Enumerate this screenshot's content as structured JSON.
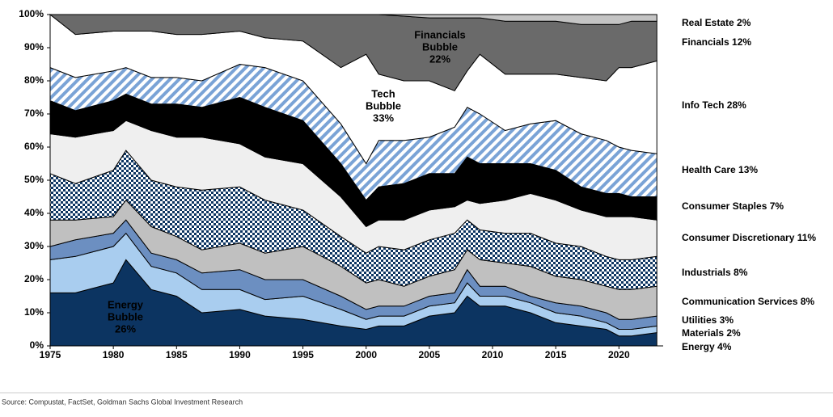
{
  "chart_data": {
    "type": "stacked_area",
    "x": [
      1975,
      1977,
      1980,
      1981,
      1983,
      1985,
      1987,
      1990,
      1992,
      1995,
      1998,
      2000,
      2001,
      2003,
      2005,
      2007,
      2008,
      2009,
      2011,
      2013,
      2015,
      2017,
      2019,
      2020,
      2021,
      2023
    ],
    "xlim": [
      1975,
      2023.5
    ],
    "xticks": [
      1975,
      1980,
      1985,
      1990,
      1995,
      2000,
      2005,
      2010,
      2015,
      2020
    ],
    "ylim": [
      0,
      100
    ],
    "yticks": [
      {
        "value": 0,
        "label": "0%"
      },
      {
        "value": 10,
        "label": "10%"
      },
      {
        "value": 20,
        "label": "20%"
      },
      {
        "value": 30,
        "label": "30%"
      },
      {
        "value": 40,
        "label": "40%"
      },
      {
        "value": 50,
        "label": "50%"
      },
      {
        "value": 60,
        "label": "60%"
      },
      {
        "value": 70,
        "label": "70%"
      },
      {
        "value": 80,
        "label": "80%"
      },
      {
        "value": 90,
        "label": "90%"
      },
      {
        "value": 100,
        "label": "100%"
      }
    ],
    "series": [
      {
        "name": "Energy 4%",
        "color": "#0c3461",
        "values": [
          16,
          16,
          19,
          26,
          17,
          15,
          10,
          11,
          9,
          8,
          6,
          5,
          6,
          6,
          9,
          10,
          15,
          12,
          12,
          10,
          7,
          6,
          5,
          3,
          3,
          4
        ]
      },
      {
        "name": "Materials 2%",
        "color": "#a9cdef",
        "values": [
          10,
          11,
          11,
          8,
          7,
          7,
          7,
          6,
          5,
          7,
          5,
          3,
          3,
          3,
          3,
          3,
          4,
          3,
          3,
          3,
          3,
          3,
          2,
          2,
          2,
          2
        ]
      },
      {
        "name": "Utilities 3%",
        "color": "#6c8fc1",
        "values": [
          4,
          5,
          4,
          4,
          4,
          4,
          5,
          6,
          6,
          5,
          4,
          3,
          3,
          3,
          3,
          3,
          4,
          3,
          3,
          2,
          3,
          3,
          3,
          3,
          3,
          3
        ]
      },
      {
        "name": "Communication Services 8%",
        "color": "#c0c0c0",
        "values": [
          8,
          6,
          5,
          6,
          8,
          7,
          7,
          8,
          8,
          10,
          9,
          8,
          8,
          6,
          6,
          7,
          6,
          8,
          7,
          9,
          8,
          8,
          8,
          9,
          9,
          9
        ]
      },
      {
        "name": "Industrials 8%",
        "color": "#0c3461",
        "pattern": "checker",
        "values": [
          14,
          11,
          14,
          15,
          14,
          15,
          18,
          17,
          16,
          11,
          9,
          9,
          10,
          11,
          11,
          11,
          9,
          9,
          9,
          10,
          10,
          10,
          9,
          9,
          9,
          9
        ]
      },
      {
        "name": "Consumer Discretionary 11%",
        "color": "#efefef",
        "values": [
          12,
          14,
          12,
          9,
          15,
          15,
          16,
          13,
          13,
          14,
          12,
          8,
          8,
          9,
          9,
          8,
          6,
          8,
          10,
          12,
          13,
          11,
          12,
          13,
          13,
          11
        ]
      },
      {
        "name": "Consumer Staples 7%",
        "color": "#000000",
        "values": [
          10,
          8,
          9,
          8,
          8,
          10,
          9,
          14,
          15,
          13,
          10,
          8,
          10,
          11,
          11,
          10,
          13,
          12,
          11,
          9,
          9,
          7,
          7,
          7,
          6,
          7
        ]
      },
      {
        "name": "Health Care 13%",
        "color": "#7aa3d6",
        "pattern": "stripes",
        "values": [
          10,
          10,
          9,
          8,
          8,
          8,
          8,
          10,
          12,
          12,
          12,
          11,
          14,
          13,
          11,
          14,
          15,
          15,
          10,
          12,
          15,
          16,
          16,
          14,
          14,
          13
        ]
      },
      {
        "name": "Info Tech 28%",
        "color": "#ffffff",
        "values": [
          16,
          13,
          12,
          11,
          14,
          13,
          14,
          10,
          9,
          12,
          17,
          33,
          20,
          18,
          17,
          11,
          11,
          18,
          17,
          15,
          14,
          17,
          18,
          24,
          25,
          28
        ]
      },
      {
        "name": "Financials 12%",
        "color": "#6a6a6a",
        "values": [
          0,
          6,
          5,
          5,
          5,
          6,
          6,
          5,
          7,
          8,
          16,
          12,
          18,
          19.5,
          19,
          22,
          16,
          11,
          16,
          16,
          16,
          16,
          17,
          13,
          14,
          12
        ]
      },
      {
        "name": "Real Estate 2%",
        "color": "#c4c4c4",
        "values": [
          0,
          0,
          0,
          0,
          0,
          0,
          0,
          0,
          0,
          0,
          0,
          0,
          0,
          0.5,
          1,
          1,
          1,
          1,
          2,
          2,
          2,
          3,
          3,
          3,
          2,
          2
        ]
      }
    ],
    "annotations": [
      {
        "lines": [
          "Energy",
          "Bubble",
          "26%"
        ]
      },
      {
        "lines": [
          "Tech",
          "Bubble",
          "33%"
        ]
      },
      {
        "lines": [
          "Financials",
          "Bubble",
          "22%"
        ]
      }
    ],
    "source": "Source: Compustat, FactSet, Goldman Sachs Global Investment Research"
  }
}
